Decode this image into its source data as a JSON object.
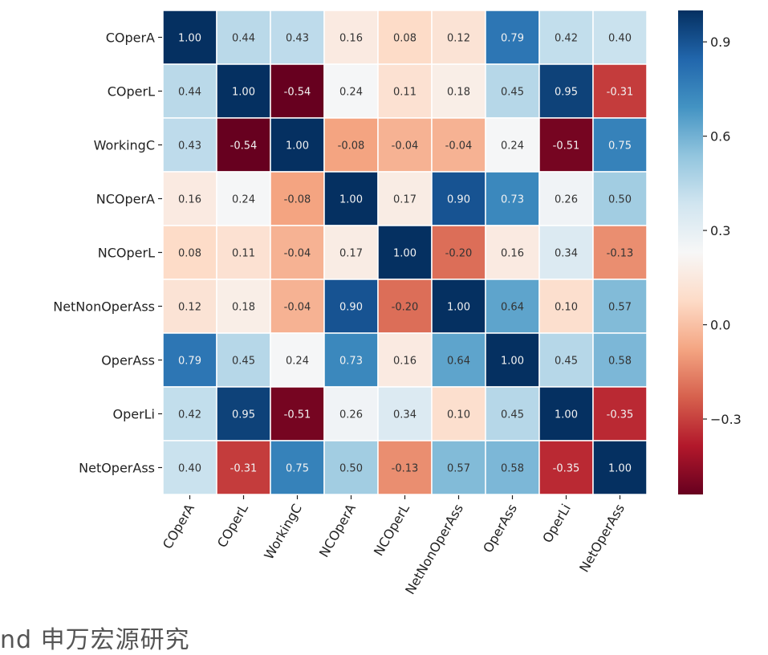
{
  "chart_data": {
    "type": "heatmap",
    "title": "",
    "xlabel": "",
    "ylabel": "",
    "colormap": "RdBu",
    "annot_format": "0.00",
    "row_labels": [
      "COperA",
      "COperL",
      "WorkingC",
      "NCOperA",
      "NCOperL",
      "NetNonOperAss",
      "OperAss",
      "OperLi",
      "NetOperAss"
    ],
    "col_labels": [
      "COperA",
      "COperL",
      "WorkingC",
      "NCOperA",
      "NCOperL",
      "NetNonOperAss",
      "OperAss",
      "OperLi",
      "NetOperAss"
    ],
    "values": [
      [
        1.0,
        0.44,
        0.43,
        0.16,
        0.08,
        0.12,
        0.79,
        0.42,
        0.4
      ],
      [
        0.44,
        1.0,
        -0.54,
        0.24,
        0.11,
        0.18,
        0.45,
        0.95,
        -0.31
      ],
      [
        0.43,
        -0.54,
        1.0,
        -0.08,
        -0.04,
        -0.04,
        0.24,
        -0.51,
        0.75
      ],
      [
        0.16,
        0.24,
        -0.08,
        1.0,
        0.17,
        0.9,
        0.73,
        0.26,
        0.5
      ],
      [
        0.08,
        0.11,
        -0.04,
        0.17,
        1.0,
        -0.2,
        0.16,
        0.34,
        -0.13
      ],
      [
        0.12,
        0.18,
        -0.04,
        0.9,
        -0.2,
        1.0,
        0.64,
        0.1,
        0.57
      ],
      [
        0.79,
        0.45,
        0.24,
        0.73,
        0.16,
        0.64,
        1.0,
        0.45,
        0.58
      ],
      [
        0.42,
        0.95,
        -0.51,
        0.26,
        0.34,
        0.1,
        0.45,
        1.0,
        -0.35
      ],
      [
        0.4,
        -0.31,
        0.75,
        0.5,
        -0.13,
        0.57,
        0.58,
        -0.35,
        1.0
      ]
    ],
    "vmin": -0.54,
    "vmax": 1.0,
    "colorbar": {
      "ticks": [
        -0.3,
        0.0,
        0.3,
        0.6,
        0.9
      ],
      "tick_labels": [
        "−0.3",
        "0.0",
        "0.3",
        "0.6",
        "0.9"
      ],
      "placement": "right"
    },
    "x_tick_rotation_deg": 60,
    "colors": {
      "low": "#67001f",
      "mid": "#f7f7f7",
      "high": "#053061",
      "gridline": "#ffffff"
    }
  },
  "watermark": "nd   申万宏源研究"
}
